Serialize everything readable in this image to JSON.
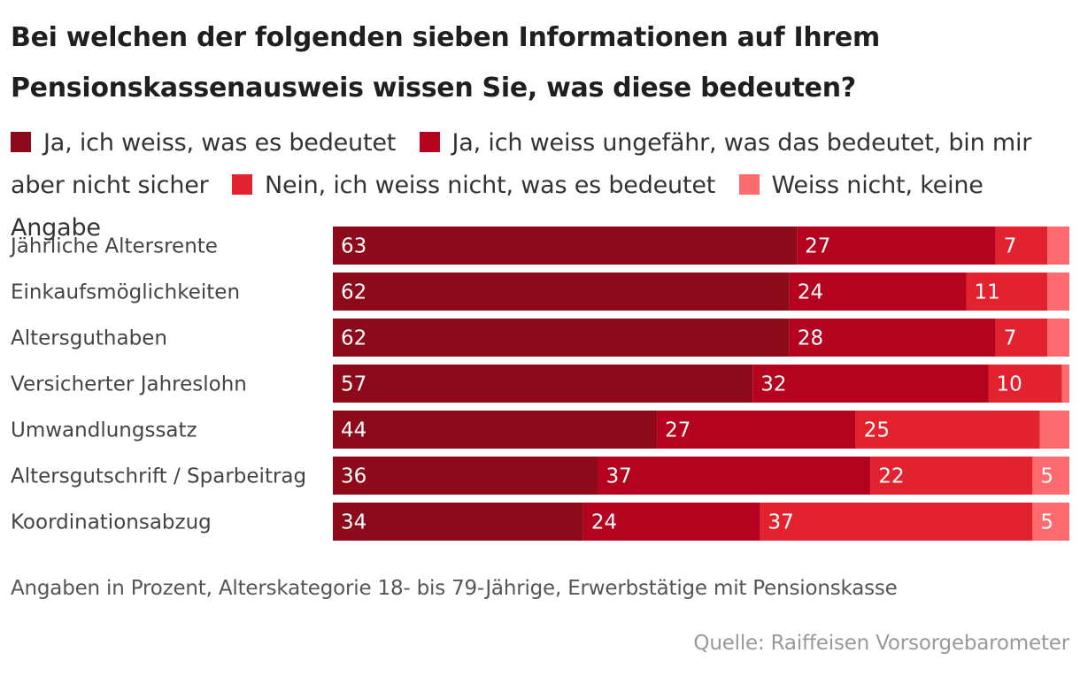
{
  "chart_data": {
    "type": "bar",
    "stacked": true,
    "orientation": "horizontal",
    "title": "Bei welchen der folgenden sieben Informationen auf Ihrem Pensionskassenausweis wissen Sie, was diese bedeuten?",
    "categories": [
      "Jährliche Altersrente",
      "Einkaufsmöglichkeiten",
      "Altersguthaben",
      "Versicherter Jahreslohn",
      "Umwandlungssatz",
      "Altersgutschrift / Sparbeitrag",
      "Koordinationsabzug"
    ],
    "series": [
      {
        "name": "Ja, ich weiss, was es bedeutet",
        "color": "#8c0a19",
        "values": [
          63,
          62,
          62,
          57,
          44,
          36,
          34
        ]
      },
      {
        "name": "Ja, ich weiss ungefähr, was das bedeutet, bin mir aber nicht sicher",
        "color": "#b5021f",
        "values": [
          27,
          24,
          28,
          32,
          27,
          37,
          24
        ]
      },
      {
        "name": "Nein, ich weiss nicht, was es bedeutet",
        "color": "#e32230",
        "values": [
          7,
          11,
          7,
          10,
          25,
          22,
          37
        ]
      },
      {
        "name": "Weiss nicht, keine Angabe",
        "color": "#fd6b6e",
        "values": [
          3,
          3,
          3,
          1,
          4,
          5,
          5
        ]
      }
    ],
    "label_threshold": 5,
    "xlim": [
      0,
      100
    ],
    "note": "Angaben in Prozent, Alterskategorie 18- bis 79-Jährige, Erwerbstätige mit Pensionskasse",
    "source": "Quelle: Raiffeisen Vorsorgebarometer"
  }
}
